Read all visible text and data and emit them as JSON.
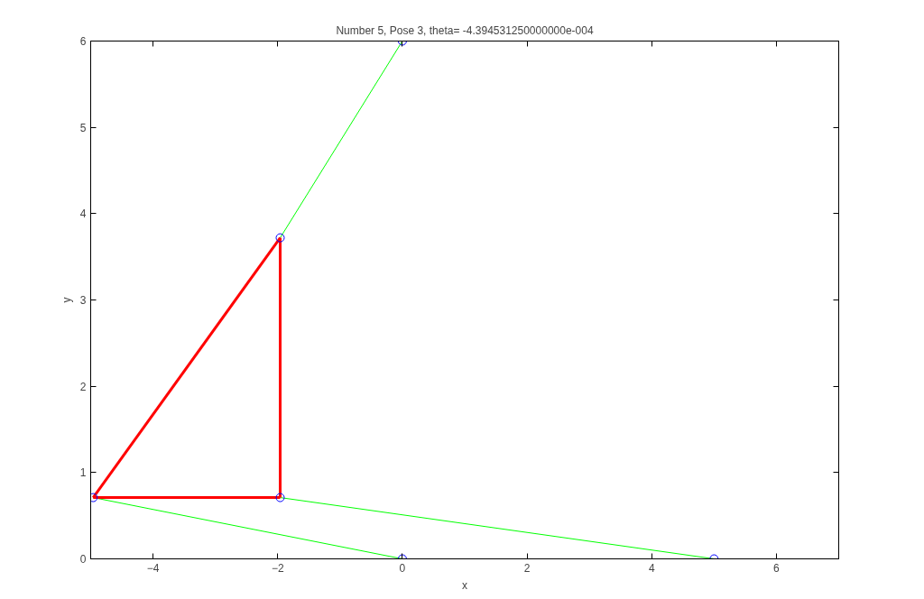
{
  "chart_data": {
    "type": "line",
    "title": "Number 5, Pose 3, theta= -4.394531250000000e-004",
    "xlabel": "x",
    "ylabel": "y",
    "xlim": [
      -5,
      7
    ],
    "xticks": [
      -4,
      -2,
      0,
      2,
      4,
      6
    ],
    "ylim": [
      0,
      6
    ],
    "yticks": [
      0,
      1,
      2,
      3,
      4,
      5,
      6
    ],
    "grid": false,
    "line_style": "solid",
    "series": [
      {
        "color": "#00ff00",
        "x": [
          0,
          -1.96
        ],
        "values": [
          6,
          3.72
        ]
      },
      {
        "color": "#00ff00",
        "x": [
          -4.96,
          0
        ],
        "values": [
          0.71,
          0
        ]
      },
      {
        "color": "#00ff00",
        "x": [
          -1.96,
          5
        ],
        "values": [
          0.71,
          0
        ]
      },
      {
        "color": "#ff0000",
        "x": [
          -4.96,
          -1.96
        ],
        "values": [
          0.71,
          3.72
        ]
      },
      {
        "color": "#ff0000",
        "x": [
          -1.96,
          -1.96
        ],
        "values": [
          3.72,
          0.71
        ]
      },
      {
        "color": "#ff0000",
        "x": [
          -1.96,
          -4.96
        ],
        "values": [
          0.71,
          0.71
        ]
      },
      {
        "type": "scatter",
        "color": "#0000ff",
        "marker": "circle",
        "x": [
          0,
          -1.96,
          -4.96,
          -1.96,
          0,
          5
        ],
        "values": [
          6,
          3.72,
          0.71,
          0.71,
          0,
          0
        ]
      }
    ]
  }
}
